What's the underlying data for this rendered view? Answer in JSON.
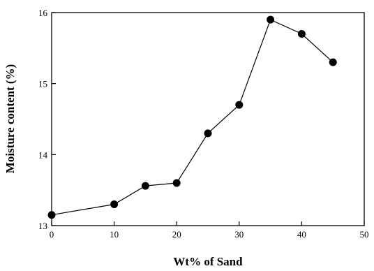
{
  "chart_data": {
    "type": "line",
    "title": "",
    "xlabel": "Wt% of Sand",
    "ylabel": "Moisture content (%)",
    "xlim": [
      0,
      50
    ],
    "ylim": [
      13,
      16
    ],
    "xticks": [
      0,
      10,
      20,
      30,
      40,
      50
    ],
    "yticks": [
      13,
      14,
      15,
      16
    ],
    "grid": false,
    "legend": "none",
    "marker": "filled-circle",
    "color": "#000000",
    "series": [
      {
        "x": [
          0,
          10,
          15,
          20,
          25,
          30,
          35,
          40,
          45
        ],
        "y": [
          13.15,
          13.3,
          13.56,
          13.6,
          14.3,
          14.7,
          15.9,
          15.7,
          15.3
        ]
      }
    ]
  }
}
